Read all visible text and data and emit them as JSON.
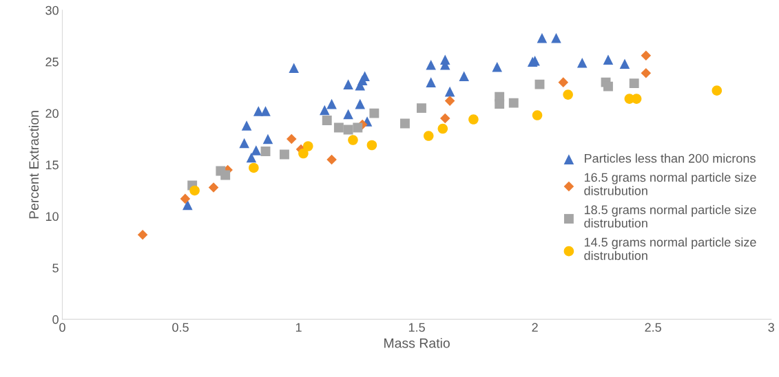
{
  "chart_data": {
    "type": "scatter",
    "xlabel": "Mass Ratio",
    "ylabel": "Percent Extraction",
    "xlim": [
      0,
      3
    ],
    "xticks": [
      0,
      0.5,
      1,
      1.5,
      2,
      2.5,
      3
    ],
    "ylim": [
      0,
      30
    ],
    "yticks": [
      0,
      5,
      10,
      15,
      20,
      25,
      30
    ],
    "grid": false,
    "legend": "right",
    "series": [
      {
        "name": "Particles less than 200 microns",
        "color": "#4472c4",
        "marker": "triangle",
        "x": [
          0.53,
          0.77,
          0.78,
          0.8,
          0.82,
          0.83,
          0.86,
          0.87,
          0.98,
          1.11,
          1.14,
          1.21,
          1.21,
          1.26,
          1.26,
          1.27,
          1.28,
          1.29,
          1.56,
          1.56,
          1.62,
          1.62,
          1.64,
          1.7,
          1.84,
          1.99,
          2.0,
          2.03,
          2.09,
          2.2,
          2.31,
          2.38
        ],
        "values": [
          11.1,
          17.1,
          18.8,
          15.7,
          16.4,
          20.2,
          20.2,
          17.5,
          24.4,
          20.3,
          20.9,
          19.9,
          22.8,
          22.7,
          20.9,
          23.2,
          23.6,
          19.2,
          24.7,
          23.0,
          25.2,
          24.7,
          22.1,
          23.6,
          24.5,
          25.0,
          25.1,
          27.3,
          27.3,
          24.9,
          25.2,
          24.8
        ]
      },
      {
        "name": "16.5 grams normal particle size distrubution",
        "color": "#ed7d31",
        "marker": "diamond",
        "x": [
          0.34,
          0.52,
          0.64,
          0.7,
          0.97,
          1.01,
          1.14,
          1.27,
          1.62,
          1.64,
          2.12,
          2.47,
          2.47
        ],
        "values": [
          8.2,
          11.7,
          12.8,
          14.5,
          17.5,
          16.5,
          15.5,
          18.9,
          19.5,
          21.2,
          23.0,
          25.6,
          23.9
        ]
      },
      {
        "name": "18.5 grams normal particle size distrubution",
        "color": "#a5a5a5",
        "marker": "square",
        "x": [
          0.55,
          0.67,
          0.69,
          0.86,
          0.94,
          1.12,
          1.17,
          1.21,
          1.25,
          1.32,
          1.45,
          1.52,
          1.85,
          1.85,
          1.91,
          2.02,
          2.3,
          2.31,
          2.42
        ],
        "values": [
          13.0,
          14.4,
          14.0,
          16.3,
          16.0,
          19.3,
          18.6,
          18.4,
          18.6,
          20.0,
          19.0,
          20.5,
          21.6,
          20.9,
          21.0,
          22.8,
          23.0,
          22.6,
          22.9
        ]
      },
      {
        "name": "14.5 grams normal particle size distrubution",
        "color": "#ffc000",
        "marker": "circle",
        "x": [
          0.56,
          0.81,
          1.02,
          1.04,
          1.23,
          1.31,
          1.55,
          1.61,
          1.74,
          2.01,
          2.14,
          2.4,
          2.43,
          2.77
        ],
        "values": [
          12.5,
          14.7,
          16.1,
          16.8,
          17.4,
          16.9,
          17.8,
          18.5,
          19.4,
          19.8,
          21.8,
          21.4,
          21.4,
          22.2
        ]
      }
    ]
  }
}
